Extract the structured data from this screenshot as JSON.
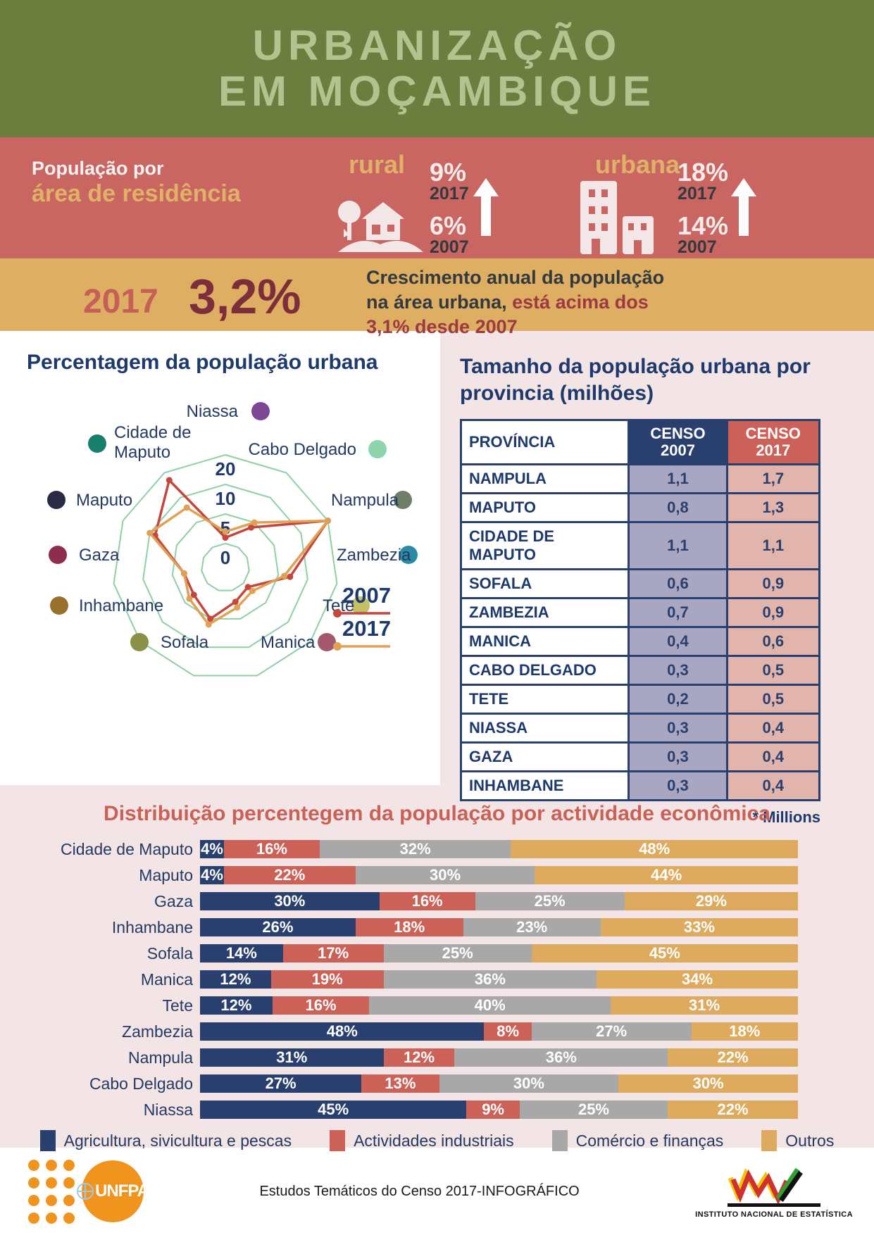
{
  "header": {
    "title_line1": "URBANIZAÇÃO",
    "title_line2": "EM MOÇAMBIQUE"
  },
  "residence": {
    "heading_line1": "População por",
    "heading_line2": "área de residência",
    "rural": {
      "label": "rural",
      "value_2017": "9%",
      "year_2017": "2017",
      "value_2007": "6%",
      "year_2007": "2007"
    },
    "urban": {
      "label": "urbana",
      "value_2017": "18%",
      "year_2017": "2017",
      "value_2007": "14%",
      "year_2007": "2007"
    }
  },
  "growth": {
    "year": "2017",
    "rate": "3,2%",
    "line1": "Crescimento anual da população",
    "line2_dark": "na área urbana,",
    "line2_maroon": "está acima dos",
    "line3_maroon": "3,1% desde 2007"
  },
  "radar_panel": {
    "title": "Percentagem da população urbana",
    "legend": [
      {
        "label": "2007",
        "color": "#c5463d"
      },
      {
        "label": "2017",
        "color": "#e0a155"
      }
    ]
  },
  "table_section": {
    "title_line1": "Tamanho da população urbana por",
    "title_line2": "provincia (milhões)",
    "col_province": "PROVÍNCIA",
    "col_2007_line1": "CENSO",
    "col_2007_line2": "2007",
    "col_2017_line1": "CENSO",
    "col_2017_line2": "2017",
    "rows": [
      {
        "name": "NAMPULA",
        "censo2007": "1,1",
        "censo2017": "1,7"
      },
      {
        "name": "MAPUTO",
        "censo2007": "0,8",
        "censo2017": "1,3"
      },
      {
        "name": "CIDADE DE MAPUTO",
        "censo2007": "1,1",
        "censo2017": "1,1"
      },
      {
        "name": "SOFALA",
        "censo2007": "0,6",
        "censo2017": "0,9"
      },
      {
        "name": "ZAMBEZIA",
        "censo2007": "0,7",
        "censo2017": "0,9"
      },
      {
        "name": "MANICA",
        "censo2007": "0,4",
        "censo2017": "0,6"
      },
      {
        "name": "CABO DELGADO",
        "censo2007": "0,3",
        "censo2017": "0,5"
      },
      {
        "name": "TETE",
        "censo2007": "0,2",
        "censo2017": "0,5"
      },
      {
        "name": "NIASSA",
        "censo2007": "0,3",
        "censo2017": "0,4"
      },
      {
        "name": "GAZA",
        "censo2007": "0,3",
        "censo2017": "0,4"
      },
      {
        "name": "INHAMBANE",
        "censo2007": "0,3",
        "censo2017": "0,4"
      }
    ],
    "note": "* Millions"
  },
  "footer": {
    "unfpa_label": "UNFPA",
    "center_text": "Estudos Temáticos do Censo 2017-INFOGRÁFICO",
    "ine_label": "INSTITUTO NACIONAL DE ESTATÍSTICA"
  },
  "chart_data": [
    {
      "type": "radar",
      "title": "Percentagem da população urbana",
      "categories": [
        "Niassa",
        "Cabo Delgado",
        "Nampula",
        "Zambezia",
        "Tete",
        "Manica",
        "Sofala",
        "Inhambane",
        "Gaza",
        "Maputo",
        "Cidade de Maputo"
      ],
      "dot_colors": [
        "#7e4796",
        "#8fd4ac",
        "#6d7f68",
        "#2a8ba4",
        "#c3c066",
        "#a2596b",
        "#8a9147",
        "#97712c",
        "#8e2e4c",
        "#2b2a44",
        "#17806d"
      ],
      "ring_labels": [
        "20",
        "10",
        "5",
        "0"
      ],
      "ring_values": [
        20,
        10,
        5,
        0
      ],
      "scale_note": "concentric rings mark 0, 5, 10, 20 percent (non-linear radial spacing)",
      "grid_color": "#8fcfa5",
      "series": [
        {
          "name": "2007",
          "color": "#c5463d",
          "values": [
            1,
            4,
            20,
            7,
            1,
            2,
            5,
            3,
            3,
            9,
            17
          ]
        },
        {
          "name": "2017",
          "color": "#e0a155",
          "values": [
            2,
            5,
            20,
            6,
            2,
            3,
            6,
            4,
            3,
            10,
            8
          ]
        }
      ],
      "legend_position": "bottom-right"
    },
    {
      "type": "bar",
      "orientation": "horizontal-stacked",
      "title": "Distribuição percentegem da população por actividade econômica",
      "unit": "%",
      "categories": [
        "Cidade de Maputo",
        "Maputo",
        "Gaza",
        "Inhambane",
        "Sofala",
        "Manica",
        "Tete",
        "Zambezia",
        "Nampula",
        "Cabo Delgado",
        "Niassa"
      ],
      "series": [
        {
          "name": "Agricultura, sivicultura e pescas",
          "color": "#293f6d",
          "values": [
            4,
            4,
            30,
            26,
            14,
            12,
            12,
            48,
            31,
            27,
            45
          ]
        },
        {
          "name": "Actividades industriais",
          "color": "#cb6157",
          "values": [
            16,
            22,
            16,
            18,
            17,
            19,
            16,
            8,
            12,
            13,
            9
          ]
        },
        {
          "name": "Comércio e finanças",
          "color": "#a8a8a8",
          "values": [
            32,
            30,
            25,
            23,
            25,
            36,
            40,
            27,
            36,
            30,
            25
          ]
        },
        {
          "name": "Outros",
          "color": "#deaa5e",
          "values": [
            48,
            44,
            29,
            33,
            45,
            34,
            31,
            18,
            22,
            30,
            22
          ]
        }
      ],
      "legend_position": "bottom"
    }
  ]
}
